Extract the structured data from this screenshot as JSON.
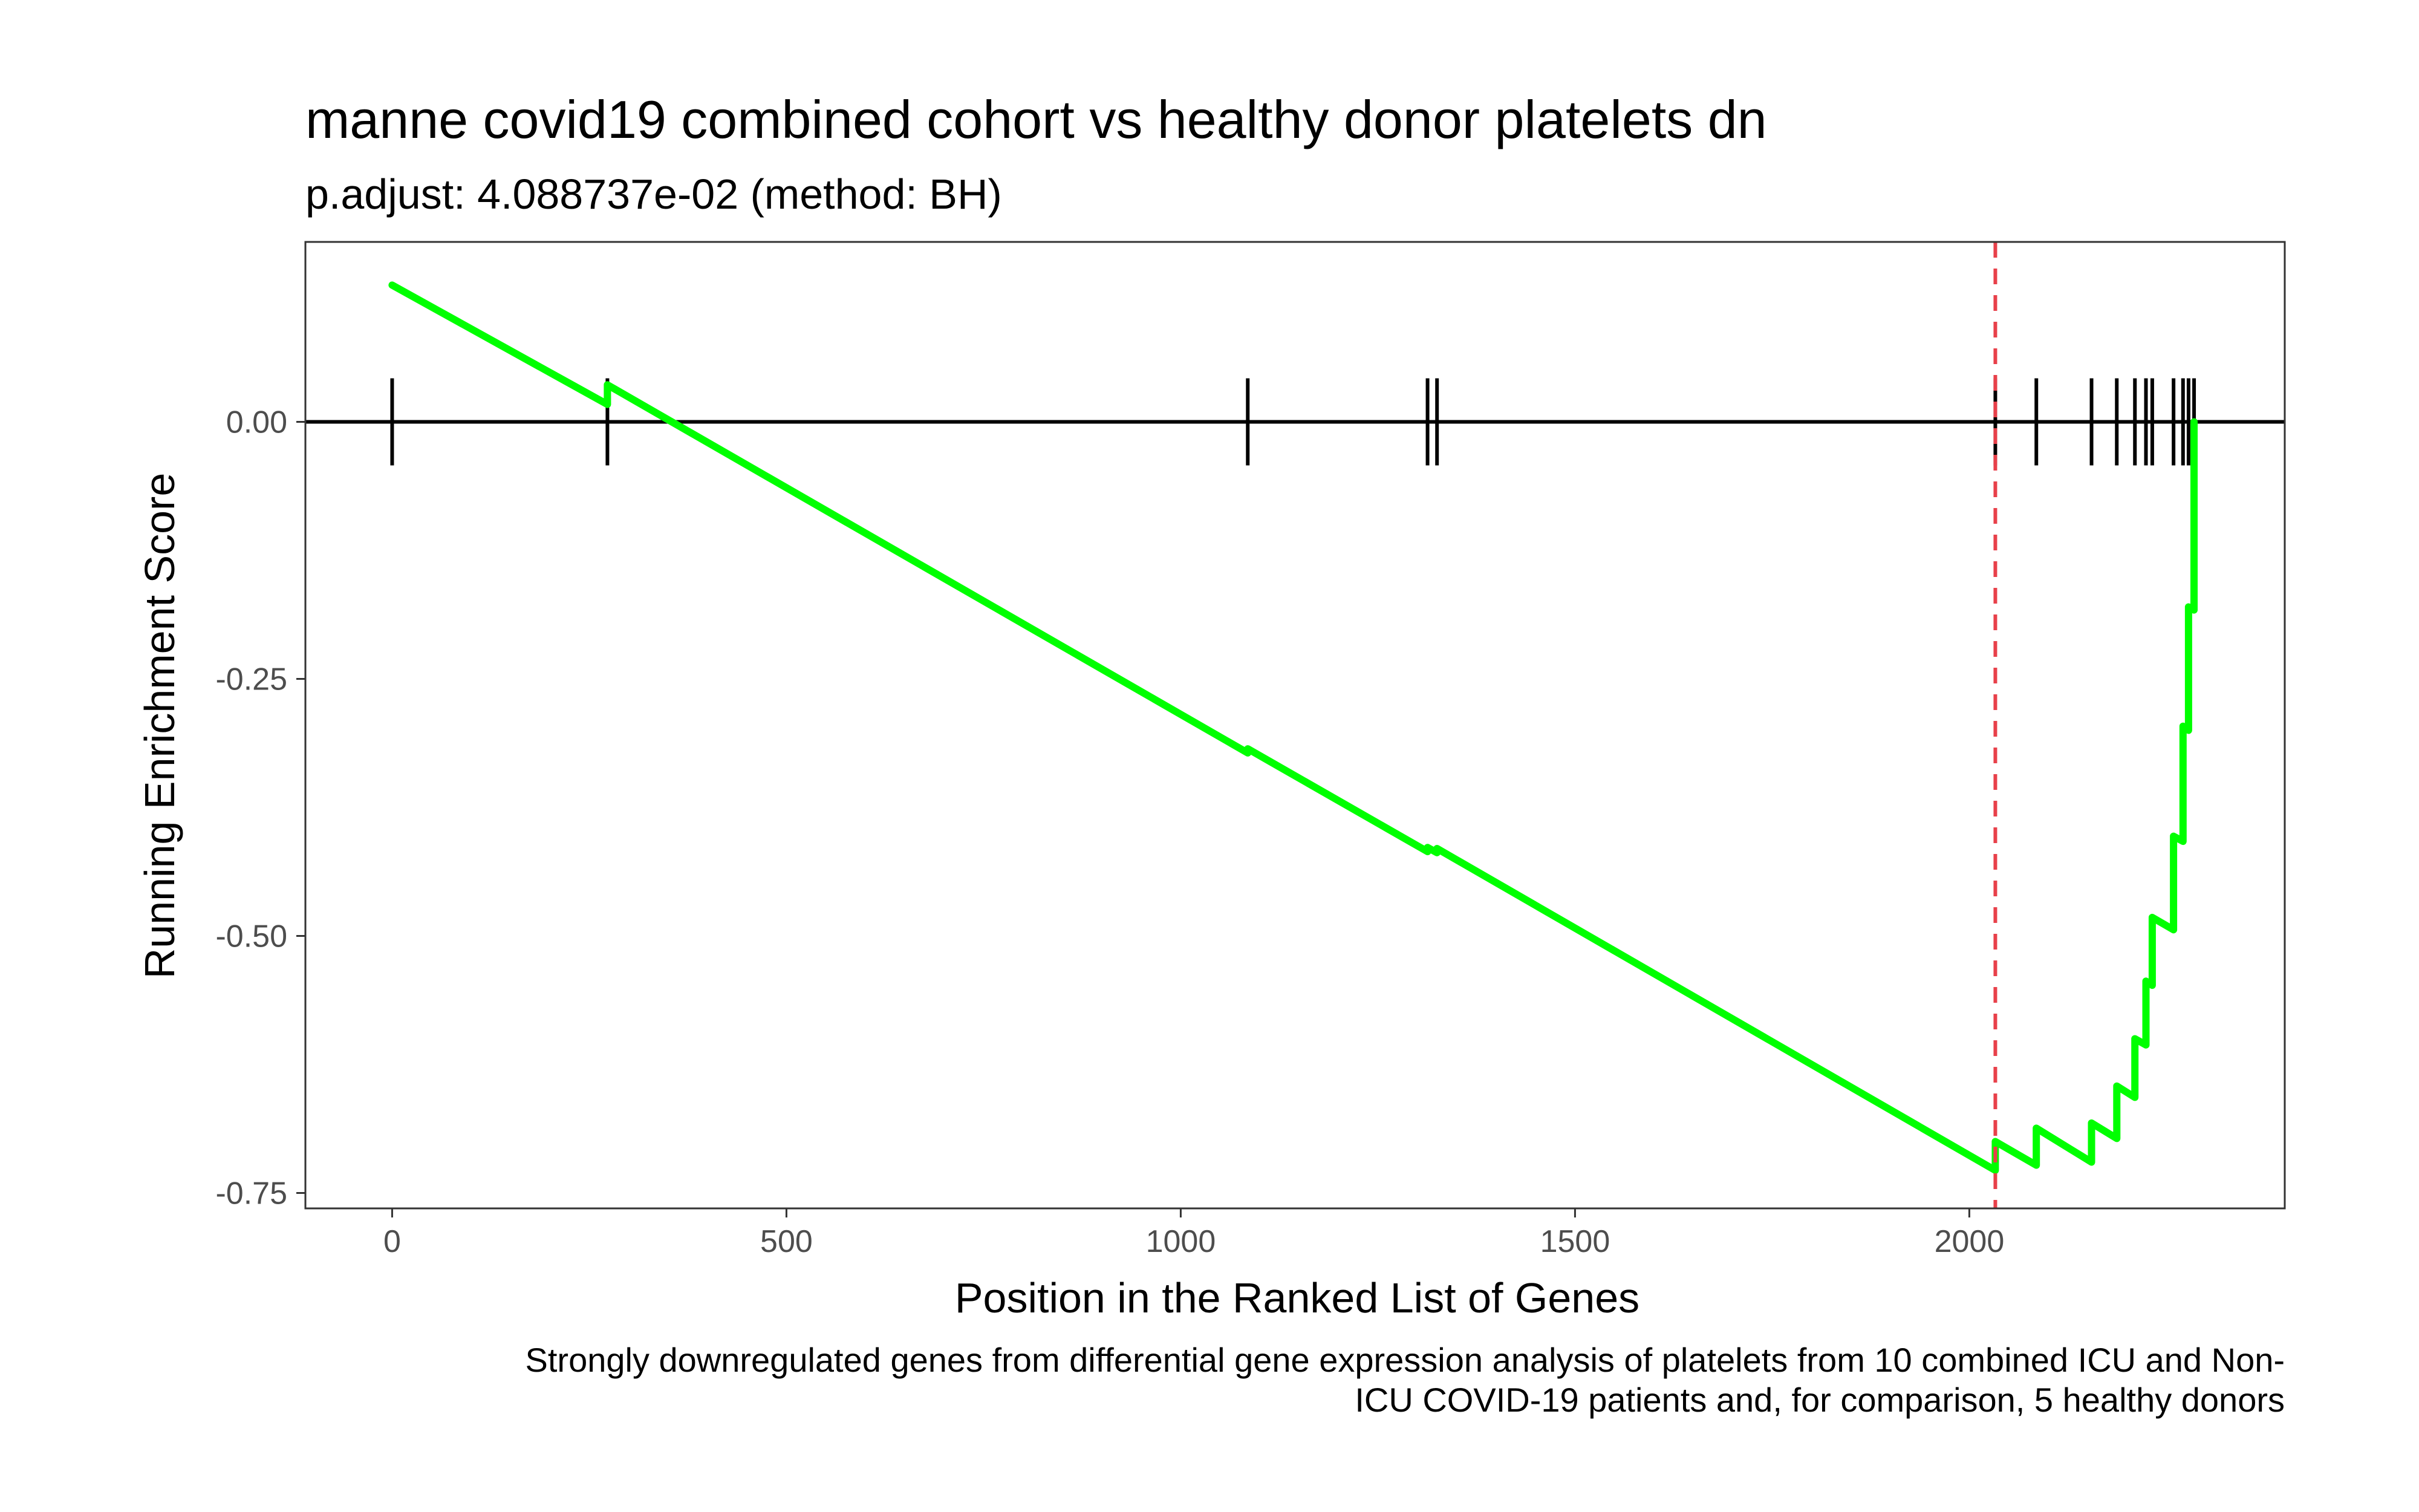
{
  "chart_data": {
    "type": "line",
    "title": "manne covid19 combined cohort vs healthy donor platelets dn",
    "subtitle": "p.adjust: 4.088737e-02 (method: BH)",
    "xlabel": "Position in the Ranked List of Genes",
    "ylabel": "Running Enrichment Score",
    "caption_lines": [
      "Strongly downregulated genes from differential gene expression analysis of platelets from 10 combined ICU and Non-",
      "ICU COVID-19 patients and, for comparison, 5 healthy donors"
    ],
    "xlim": [
      -110,
      2400
    ],
    "ylim": [
      -0.765,
      0.175
    ],
    "x_ticks": [
      0,
      500,
      1000,
      1500,
      2000
    ],
    "x_tick_labels": [
      "0",
      "500",
      "1000",
      "1500",
      "2000"
    ],
    "y_ticks": [
      0.0,
      -0.25,
      -0.5,
      -0.75
    ],
    "y_tick_labels": [
      "0.00",
      "-0.25",
      "-0.50",
      "-0.75"
    ],
    "grid": false,
    "baseline_y": 0,
    "max_deviation_x": 2033,
    "hit_positions": [
      0,
      273,
      1085,
      1313,
      1325,
      2033,
      2085,
      2155,
      2187,
      2210,
      2224,
      2232,
      2259,
      2271,
      2278,
      2285
    ],
    "series": [
      {
        "color": "#00ff00",
        "points": [
          [
            0,
            0.133
          ],
          [
            0,
            0.133
          ],
          [
            273,
            0.017
          ],
          [
            273,
            0.036
          ],
          [
            1085,
            -0.322
          ],
          [
            1085,
            -0.318
          ],
          [
            1313,
            -0.418
          ],
          [
            1313,
            -0.414
          ],
          [
            1325,
            -0.419
          ],
          [
            1325,
            -0.415
          ],
          [
            2033,
            -0.728
          ],
          [
            2033,
            -0.7
          ],
          [
            2085,
            -0.723
          ],
          [
            2085,
            -0.687
          ],
          [
            2155,
            -0.72
          ],
          [
            2155,
            -0.682
          ],
          [
            2187,
            -0.697
          ],
          [
            2187,
            -0.646
          ],
          [
            2210,
            -0.657
          ],
          [
            2210,
            -0.6
          ],
          [
            2224,
            -0.606
          ],
          [
            2224,
            -0.544
          ],
          [
            2232,
            -0.548
          ],
          [
            2232,
            -0.482
          ],
          [
            2259,
            -0.494
          ],
          [
            2259,
            -0.403
          ],
          [
            2271,
            -0.408
          ],
          [
            2271,
            -0.296
          ],
          [
            2278,
            -0.3
          ],
          [
            2278,
            -0.18
          ],
          [
            2285,
            -0.183
          ],
          [
            2285,
            0.0
          ]
        ]
      }
    ],
    "colors": {
      "curve": "#00ff00",
      "max_deviation_line": "#e8404a",
      "rug": "#000000",
      "baseline": "#000000",
      "panel_border": "#333333"
    }
  }
}
